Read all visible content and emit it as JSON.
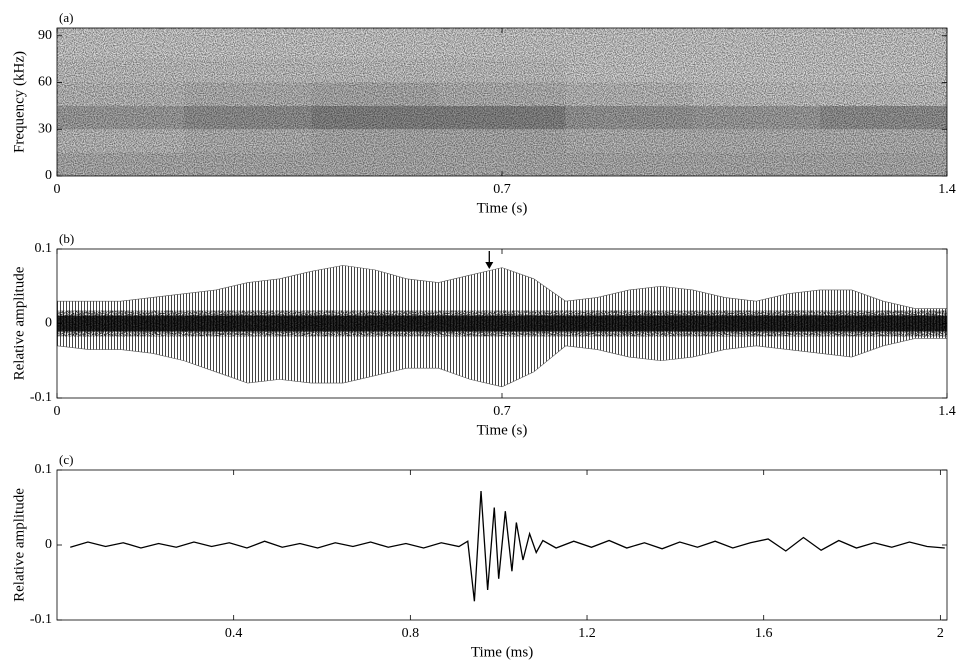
{
  "chart_data": [
    {
      "type": "spectrogram",
      "panel_label": "(a)",
      "xlabel": "Time (s)",
      "ylabel": "Frequency (kHz)",
      "xlim": [
        0,
        1.4
      ],
      "xticks": [
        0,
        0.7,
        1.4
      ],
      "ylim": [
        0,
        95
      ],
      "yticks": [
        0,
        30,
        60,
        90
      ],
      "bins_x": [
        0,
        0.2,
        0.4,
        0.6,
        0.8,
        1.0,
        1.2,
        1.4
      ],
      "bins_y": [
        0,
        15,
        30,
        45,
        60,
        75,
        95
      ],
      "values": [
        [
          0.4,
          0.4,
          0.4,
          0.4,
          0.4,
          0.4,
          0.4
        ],
        [
          0.3,
          0.35,
          0.4,
          0.4,
          0.35,
          0.35,
          0.35
        ],
        [
          0.5,
          0.6,
          0.7,
          0.7,
          0.55,
          0.5,
          0.6
        ],
        [
          0.3,
          0.35,
          0.4,
          0.35,
          0.3,
          0.25,
          0.25
        ],
        [
          0.25,
          0.25,
          0.25,
          0.25,
          0.2,
          0.2,
          0.2
        ],
        [
          0.2,
          0.2,
          0.2,
          0.2,
          0.2,
          0.2,
          0.2
        ]
      ]
    },
    {
      "type": "envelope",
      "panel_label": "(b)",
      "xlabel": "Time (s)",
      "ylabel": "Relative amplitude",
      "xlim": [
        0,
        1.4
      ],
      "xticks": [
        0,
        0.7,
        1.4
      ],
      "ylim": [
        -0.1,
        0.1
      ],
      "yticks": [
        -0.1,
        0,
        0.1
      ],
      "arrow_x": 0.68,
      "x": [
        0,
        0.05,
        0.1,
        0.15,
        0.2,
        0.25,
        0.3,
        0.35,
        0.4,
        0.45,
        0.5,
        0.55,
        0.6,
        0.65,
        0.7,
        0.75,
        0.8,
        0.85,
        0.9,
        0.95,
        1.0,
        1.05,
        1.1,
        1.15,
        1.2,
        1.25,
        1.3,
        1.35,
        1.4
      ],
      "series": [
        {
          "color": "#555555",
          "values": [
            0.03,
            0.03,
            0.03,
            0.035,
            0.04,
            0.045,
            0.055,
            0.06,
            0.07,
            0.078,
            0.072,
            0.06,
            0.055,
            0.065,
            0.075,
            0.06,
            0.03,
            0.035,
            0.045,
            0.05,
            0.045,
            0.035,
            0.03,
            0.04,
            0.045,
            0.045,
            0.03,
            0.02,
            0.02
          ]
        },
        {
          "color": "#555555",
          "values": [
            -0.03,
            -0.035,
            -0.035,
            -0.04,
            -0.05,
            -0.065,
            -0.08,
            -0.075,
            -0.08,
            -0.08,
            -0.07,
            -0.06,
            -0.06,
            -0.075,
            -0.085,
            -0.065,
            -0.03,
            -0.035,
            -0.045,
            -0.05,
            -0.045,
            -0.035,
            -0.03,
            -0.035,
            -0.04,
            -0.045,
            -0.03,
            -0.02,
            -0.02
          ]
        }
      ]
    },
    {
      "type": "line",
      "panel_label": "(c)",
      "xlabel": "Time (ms)",
      "ylabel": "Relative amplitude",
      "color": "#000000",
      "xlim": [
        0,
        2.015
      ],
      "xticks": [
        0.4,
        0.8,
        1.2,
        1.6,
        2
      ],
      "ylim": [
        -0.1,
        0.1
      ],
      "yticks": [
        -0.1,
        0,
        0.1
      ],
      "x": [
        0.03,
        0.07,
        0.11,
        0.15,
        0.19,
        0.23,
        0.27,
        0.31,
        0.35,
        0.39,
        0.43,
        0.47,
        0.51,
        0.55,
        0.59,
        0.63,
        0.67,
        0.71,
        0.75,
        0.79,
        0.83,
        0.87,
        0.91,
        0.93,
        0.945,
        0.96,
        0.975,
        0.99,
        1.0,
        1.015,
        1.03,
        1.04,
        1.055,
        1.07,
        1.085,
        1.1,
        1.13,
        1.17,
        1.21,
        1.25,
        1.29,
        1.33,
        1.37,
        1.41,
        1.45,
        1.49,
        1.53,
        1.57,
        1.61,
        1.65,
        1.69,
        1.73,
        1.77,
        1.81,
        1.85,
        1.89,
        1.93,
        1.97,
        2.01
      ],
      "values": [
        -0.003,
        0.004,
        -0.002,
        0.003,
        -0.004,
        0.002,
        -0.003,
        0.004,
        -0.002,
        0.003,
        -0.004,
        0.005,
        -0.003,
        0.002,
        -0.004,
        0.003,
        -0.002,
        0.004,
        -0.003,
        0.002,
        -0.004,
        0.003,
        -0.002,
        0.005,
        -0.075,
        0.072,
        -0.06,
        0.05,
        -0.045,
        0.045,
        -0.035,
        0.03,
        -0.02,
        0.015,
        -0.01,
        0.006,
        -0.004,
        0.005,
        -0.003,
        0.006,
        -0.004,
        0.003,
        -0.005,
        0.004,
        -0.003,
        0.005,
        -0.004,
        0.003,
        0.008,
        -0.008,
        0.01,
        -0.007,
        0.006,
        -0.004,
        0.003,
        -0.003,
        0.004,
        -0.002,
        -0.004
      ]
    }
  ]
}
